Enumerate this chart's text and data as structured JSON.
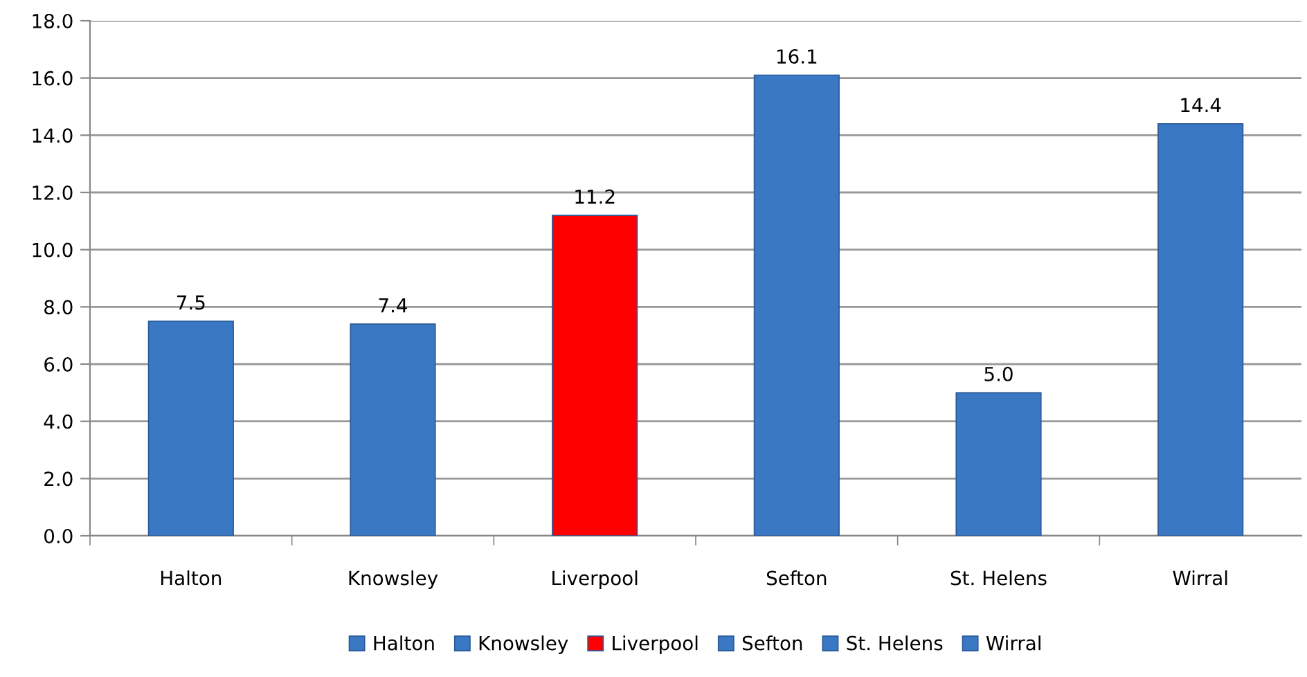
{
  "chart_data": {
    "type": "bar",
    "categories": [
      "Halton",
      "Knowsley",
      "Liverpool",
      "Sefton",
      "St. Helens",
      "Wirral"
    ],
    "series": [
      {
        "name": "Halton",
        "color": "#3a78c4",
        "values": [
          7.5,
          null,
          null,
          null,
          null,
          null
        ],
        "value_labels": [
          "7.5",
          null,
          null,
          null,
          null,
          null
        ]
      },
      {
        "name": "Knowsley",
        "color": "#3a78c4",
        "values": [
          null,
          7.4,
          null,
          null,
          null,
          null
        ],
        "value_labels": [
          null,
          "7.4",
          null,
          null,
          null,
          null
        ]
      },
      {
        "name": "Liverpool",
        "color": "#ff0000",
        "values": [
          null,
          null,
          11.2,
          null,
          null,
          null
        ],
        "value_labels": [
          null,
          null,
          "11.2",
          null,
          null,
          null
        ]
      },
      {
        "name": "Sefton",
        "color": "#3a78c4",
        "values": [
          null,
          null,
          null,
          16.1,
          null,
          null
        ],
        "value_labels": [
          null,
          null,
          null,
          "16.1",
          null,
          null
        ]
      },
      {
        "name": "St. Helens",
        "color": "#3a78c4",
        "values": [
          null,
          null,
          null,
          null,
          5.0,
          null
        ],
        "value_labels": [
          null,
          null,
          null,
          null,
          "5.0",
          null
        ]
      },
      {
        "name": "Wirral",
        "color": "#3a78c4",
        "values": [
          null,
          null,
          null,
          null,
          null,
          14.4
        ],
        "value_labels": [
          null,
          null,
          null,
          null,
          null,
          "14.4"
        ]
      }
    ],
    "ylim": [
      0,
      18
    ],
    "yticks": [
      {
        "value": 0,
        "label": "0.0"
      },
      {
        "value": 2,
        "label": "2.0"
      },
      {
        "value": 4,
        "label": "4.0"
      },
      {
        "value": 6,
        "label": "6.0"
      },
      {
        "value": 8,
        "label": "8.0"
      },
      {
        "value": 10,
        "label": "10.0"
      },
      {
        "value": 12,
        "label": "12.0"
      },
      {
        "value": 14,
        "label": "14.0"
      },
      {
        "value": 16,
        "label": "16.0"
      },
      {
        "value": 18,
        "label": "18.0"
      }
    ],
    "grid": "y",
    "legend": "bottom"
  }
}
